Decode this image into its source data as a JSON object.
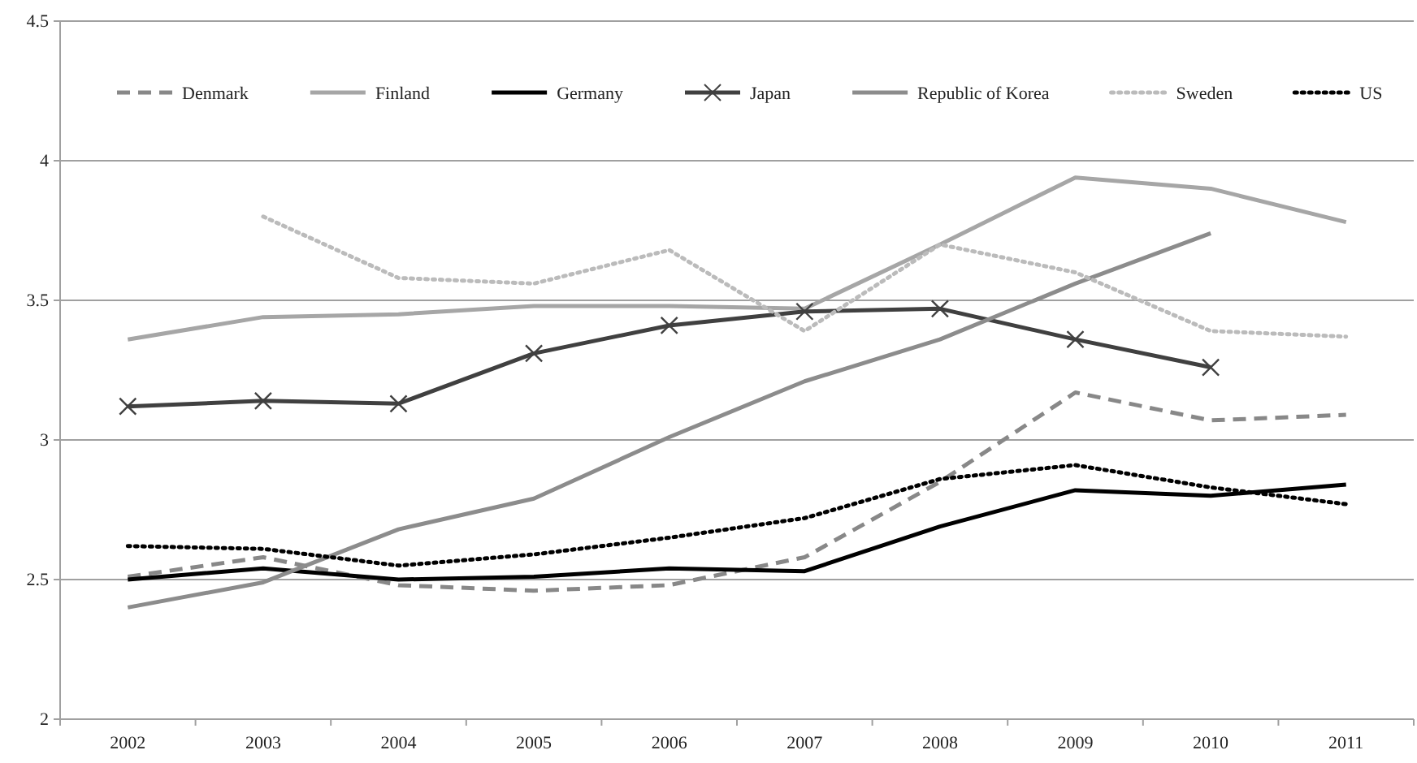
{
  "chart_data": {
    "type": "line",
    "categories": [
      "2002",
      "2003",
      "2004",
      "2005",
      "2006",
      "2007",
      "2008",
      "2009",
      "2010",
      "2011"
    ],
    "ylim": [
      2,
      4.5
    ],
    "yticks": [
      2,
      2.5,
      3,
      3.5,
      4,
      4.5
    ],
    "grid": "y",
    "legend": "top",
    "marker": "none",
    "series": [
      {
        "name": "Denmark",
        "color": "#888888",
        "line_style": "dashed",
        "values": [
          2.51,
          2.58,
          2.48,
          2.46,
          2.48,
          2.58,
          2.85,
          3.17,
          3.07,
          3.09
        ]
      },
      {
        "name": "Finland",
        "color": "#a6a6a6",
        "line_style": "solid",
        "values": [
          3.36,
          3.44,
          3.45,
          3.48,
          3.48,
          3.47,
          3.7,
          3.94,
          3.9,
          3.78
        ]
      },
      {
        "name": "Germany",
        "color": "#000000",
        "line_style": "solid",
        "values": [
          2.5,
          2.54,
          2.5,
          2.51,
          2.54,
          2.53,
          2.69,
          2.82,
          2.8,
          2.84
        ]
      },
      {
        "name": "Japan",
        "color": "#404040",
        "line_style": "solid",
        "marker": "cross",
        "values": [
          3.12,
          3.14,
          3.13,
          3.31,
          3.41,
          3.46,
          3.47,
          3.36,
          3.26,
          null
        ]
      },
      {
        "name": "Republic of Korea",
        "color": "#8c8c8c",
        "line_style": "solid",
        "values": [
          2.4,
          2.49,
          2.68,
          2.79,
          3.01,
          3.21,
          3.36,
          3.56,
          3.74,
          null
        ]
      },
      {
        "name": "Sweden",
        "color": "#bbbbbb",
        "line_style": "dotted",
        "values": [
          null,
          3.8,
          3.58,
          3.56,
          3.68,
          3.39,
          3.7,
          3.6,
          3.39,
          3.37
        ]
      },
      {
        "name": "US",
        "color": "#000000",
        "line_style": "dotted",
        "values": [
          2.62,
          2.61,
          2.55,
          2.59,
          2.65,
          2.72,
          2.86,
          2.91,
          2.83,
          2.77
        ]
      }
    ]
  }
}
